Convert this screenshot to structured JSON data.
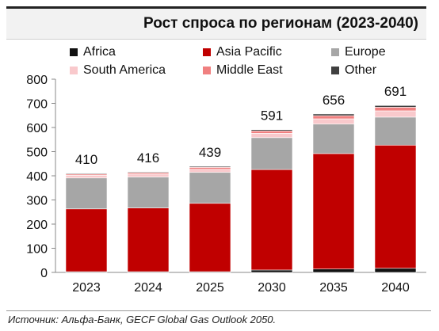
{
  "header": {
    "title": "Рост спроса по регионам (2023-2040)"
  },
  "footer": {
    "source": "Источник: Альфа-Банк, GECF Global Gas Outlook 2050."
  },
  "chart_data": {
    "type": "bar",
    "stacked": true,
    "title": "Рост спроса по регионам (2023-2040)",
    "categories": [
      "2023",
      "2024",
      "2025",
      "2030",
      "2035",
      "2040"
    ],
    "totals": [
      410,
      416,
      439,
      591,
      656,
      691
    ],
    "series": [
      {
        "name": "Africa",
        "color": "#111111",
        "values": [
          3,
          3,
          3,
          10,
          14,
          17
        ]
      },
      {
        "name": "Asia Pacific",
        "color": "#c00000",
        "values": [
          260,
          264,
          283,
          416,
          478,
          510
        ]
      },
      {
        "name": "Europe",
        "color": "#a6a6a6",
        "values": [
          128,
          128,
          128,
          132,
          122,
          116
        ]
      },
      {
        "name": "South America",
        "color": "#f9c9cc",
        "values": [
          11,
          12,
          13,
          18,
          22,
          26
        ]
      },
      {
        "name": "Middle East",
        "color": "#f08080",
        "values": [
          5,
          6,
          8,
          10,
          13,
          15
        ]
      },
      {
        "name": "Other",
        "color": "#404040",
        "values": [
          3,
          3,
          4,
          5,
          7,
          7
        ]
      }
    ],
    "ylim": [
      0,
      800
    ],
    "yticks": [
      0,
      100,
      200,
      300,
      400,
      500,
      600,
      700,
      800
    ],
    "grid": false,
    "legend_position": "top"
  }
}
